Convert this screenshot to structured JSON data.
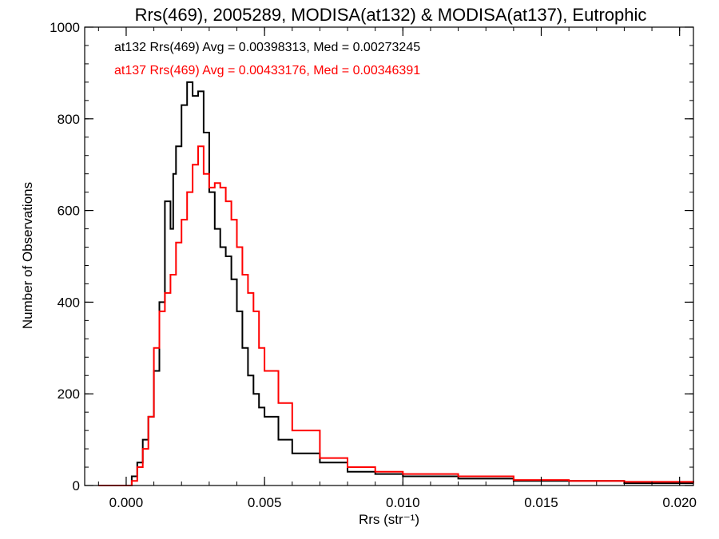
{
  "chart_data": {
    "type": "line",
    "step": true,
    "title": "Rrs(469), 2005289, MODISA(at132) & MODISA(at137), Eutrophic",
    "xlabel": "Rrs (str⁻¹)",
    "ylabel": "Number of Observations",
    "xlim": [
      -0.0015,
      0.0205
    ],
    "ylim": [
      0,
      1000
    ],
    "xticks": [
      0.0,
      0.005,
      0.01,
      0.015,
      0.02
    ],
    "xtick_labels": [
      "0.000",
      "0.005",
      "0.010",
      "0.015",
      "0.020"
    ],
    "yticks": [
      0,
      200,
      400,
      600,
      800,
      1000
    ],
    "ytick_labels": [
      "0",
      "200",
      "400",
      "600",
      "800",
      "1000"
    ],
    "grid": false,
    "legend_position": "top-left",
    "series": [
      {
        "name": "at132",
        "label": "at132 Rrs(469) Avg = 0.00398313, Med = 0.00273245",
        "color": "#000000",
        "points": [
          [
            -0.001,
            0
          ],
          [
            0.0,
            0
          ],
          [
            0.0002,
            20
          ],
          [
            0.0004,
            50
          ],
          [
            0.0006,
            100
          ],
          [
            0.0008,
            150
          ],
          [
            0.001,
            250
          ],
          [
            0.0012,
            400
          ],
          [
            0.0014,
            620
          ],
          [
            0.0016,
            560
          ],
          [
            0.0017,
            680
          ],
          [
            0.0018,
            740
          ],
          [
            0.002,
            830
          ],
          [
            0.0022,
            880
          ],
          [
            0.0024,
            850
          ],
          [
            0.0026,
            860
          ],
          [
            0.0028,
            770
          ],
          [
            0.003,
            640
          ],
          [
            0.0032,
            560
          ],
          [
            0.0034,
            520
          ],
          [
            0.0036,
            500
          ],
          [
            0.0038,
            450
          ],
          [
            0.004,
            380
          ],
          [
            0.0042,
            300
          ],
          [
            0.0044,
            240
          ],
          [
            0.0046,
            200
          ],
          [
            0.0048,
            170
          ],
          [
            0.005,
            150
          ],
          [
            0.0055,
            100
          ],
          [
            0.006,
            70
          ],
          [
            0.007,
            50
          ],
          [
            0.008,
            30
          ],
          [
            0.009,
            25
          ],
          [
            0.01,
            20
          ],
          [
            0.012,
            15
          ],
          [
            0.014,
            10
          ],
          [
            0.016,
            10
          ],
          [
            0.018,
            5
          ],
          [
            0.0205,
            5
          ]
        ]
      },
      {
        "name": "at137",
        "label": "at137 Rrs(469) Avg = 0.00433176, Med = 0.00346391",
        "color": "#ff0000",
        "points": [
          [
            -0.001,
            0
          ],
          [
            0.0,
            0
          ],
          [
            0.0002,
            10
          ],
          [
            0.0004,
            40
          ],
          [
            0.0006,
            80
          ],
          [
            0.0008,
            150
          ],
          [
            0.001,
            300
          ],
          [
            0.0012,
            380
          ],
          [
            0.0014,
            420
          ],
          [
            0.0016,
            460
          ],
          [
            0.0018,
            530
          ],
          [
            0.002,
            580
          ],
          [
            0.0022,
            640
          ],
          [
            0.0024,
            700
          ],
          [
            0.0026,
            740
          ],
          [
            0.0028,
            680
          ],
          [
            0.003,
            650
          ],
          [
            0.0032,
            660
          ],
          [
            0.0034,
            650
          ],
          [
            0.0036,
            620
          ],
          [
            0.0038,
            580
          ],
          [
            0.004,
            520
          ],
          [
            0.0042,
            460
          ],
          [
            0.0044,
            420
          ],
          [
            0.0046,
            380
          ],
          [
            0.0048,
            300
          ],
          [
            0.005,
            250
          ],
          [
            0.0055,
            180
          ],
          [
            0.006,
            120
          ],
          [
            0.007,
            60
          ],
          [
            0.008,
            40
          ],
          [
            0.009,
            30
          ],
          [
            0.01,
            25
          ],
          [
            0.012,
            20
          ],
          [
            0.014,
            12
          ],
          [
            0.016,
            10
          ],
          [
            0.018,
            8
          ],
          [
            0.0205,
            5
          ]
        ]
      }
    ]
  }
}
